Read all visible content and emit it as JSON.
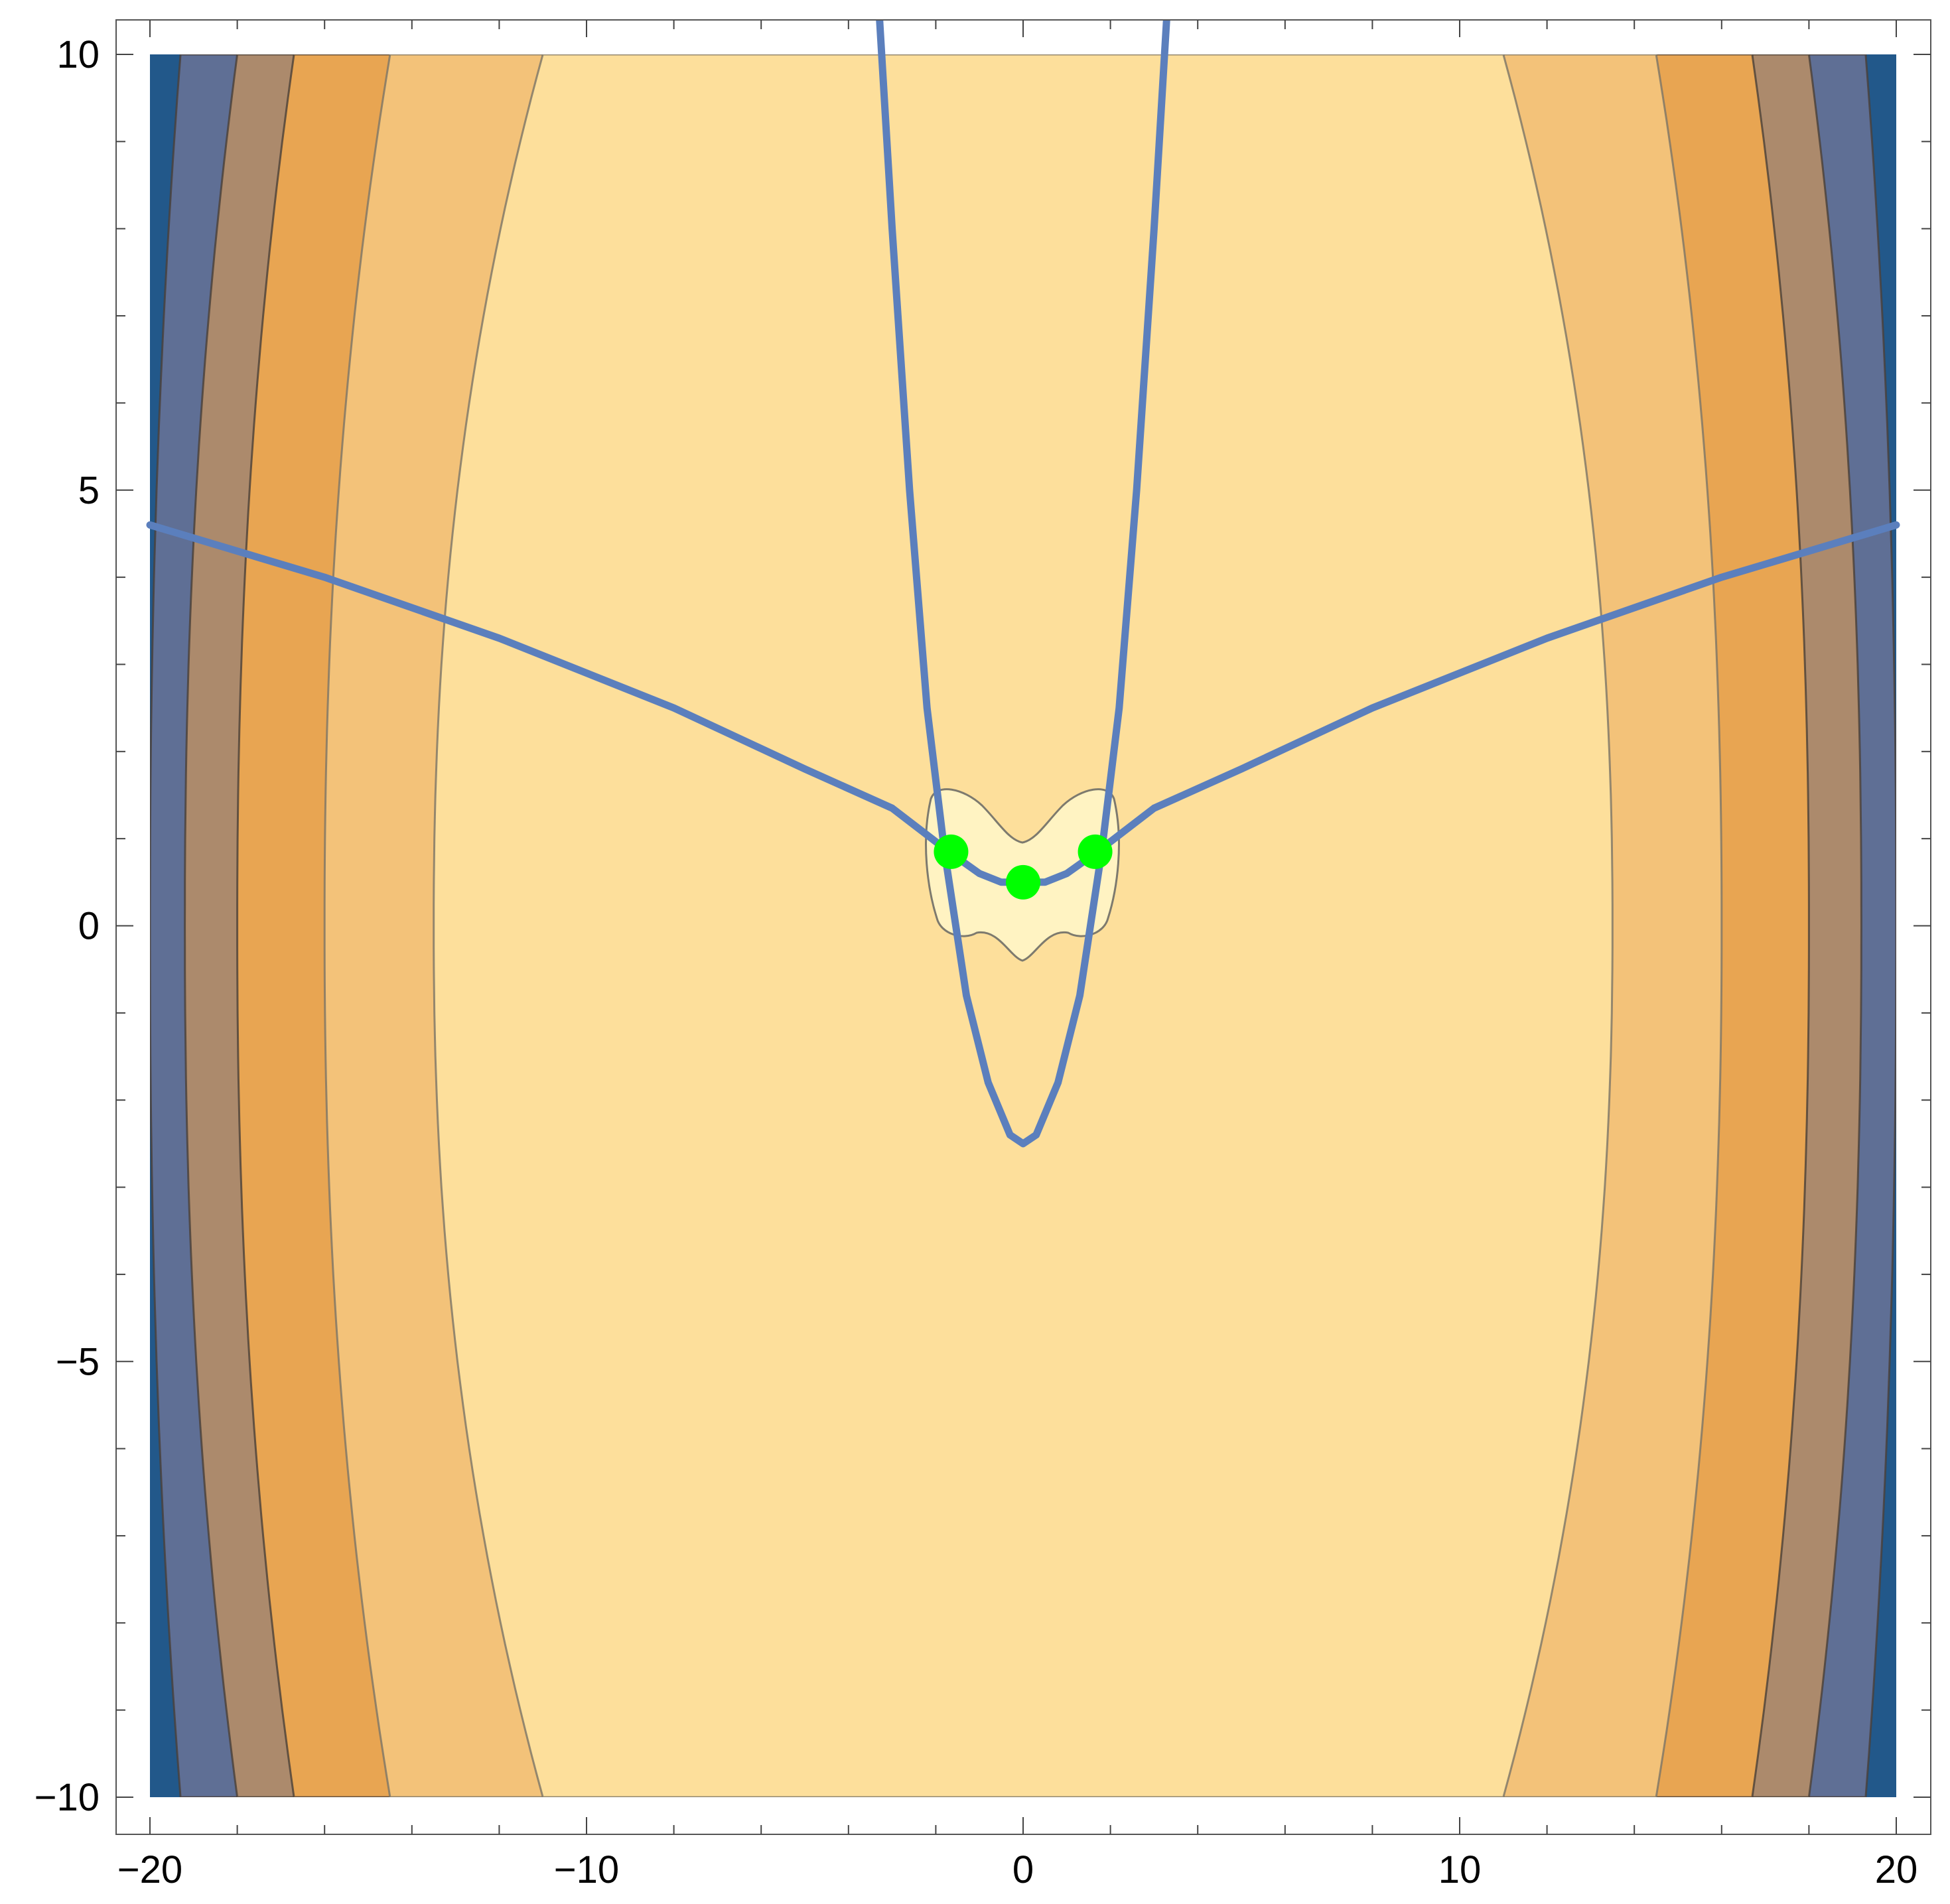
{
  "chart_data": {
    "type": "contour",
    "title": "",
    "xlabel": "",
    "ylabel": "",
    "xlim": [
      -20,
      20
    ],
    "ylim": [
      -10,
      10
    ],
    "x_major_ticks": [
      -20,
      -10,
      0,
      10,
      20
    ],
    "y_major_ticks": [
      -10,
      -5,
      0,
      5,
      10
    ],
    "x_tick_labels": [
      "−20",
      "−10",
      "0",
      "10",
      "20"
    ],
    "y_tick_labels": [
      "−10",
      "−5",
      "0",
      "5",
      "10"
    ],
    "x_minor_step": 2,
    "y_minor_step": 1,
    "contour_bands": [
      {
        "level": 1,
        "color": "#FFF3C2",
        "description": "innermost region around origin"
      },
      {
        "level": 2,
        "color": "#FDDF9B"
      },
      {
        "level": 3,
        "color": "#F3C279"
      },
      {
        "level": 4,
        "color": "#E8A552"
      },
      {
        "level": 5,
        "color": "#AC8A6C"
      },
      {
        "level": 6,
        "color": "#5F6F95"
      },
      {
        "level": 7,
        "color": "#22588A"
      }
    ],
    "contour_band_edges_x_at_y0": [
      13.5,
      16,
      18,
      19.2,
      20
    ],
    "contour_band_edges_x_at_y_minus10": [
      11,
      14.5,
      16.7,
      18,
      19.3
    ],
    "curves": [
      {
        "name": "",
        "color": "#5B7FBD",
        "points": [
          [
            -20,
            4.6
          ],
          [
            -16,
            4.0
          ],
          [
            -12,
            3.3
          ],
          [
            -8,
            2.5
          ],
          [
            -5,
            1.8
          ],
          [
            -3,
            1.35
          ],
          [
            -1.7,
            0.85
          ],
          [
            -1,
            0.6
          ],
          [
            -0.5,
            0.5
          ],
          [
            0,
            0.5
          ],
          [
            0.5,
            0.5
          ],
          [
            1,
            0.6
          ],
          [
            1.7,
            0.85
          ],
          [
            3,
            1.35
          ],
          [
            5,
            1.8
          ],
          [
            8,
            2.5
          ],
          [
            12,
            3.3
          ],
          [
            16,
            4.0
          ],
          [
            20,
            4.6
          ]
        ]
      },
      {
        "name": "",
        "color": "#5B7FBD",
        "points": [
          [
            -3.3,
            10.5
          ],
          [
            -3.0,
            8
          ],
          [
            -2.6,
            5
          ],
          [
            -2.2,
            2.5
          ],
          [
            -1.8,
            0.85
          ],
          [
            -1.3,
            -0.8
          ],
          [
            -0.8,
            -1.8
          ],
          [
            -0.3,
            -2.4
          ],
          [
            0,
            -2.5
          ],
          [
            0.3,
            -2.4
          ],
          [
            0.8,
            -1.8
          ],
          [
            1.3,
            -0.8
          ],
          [
            1.8,
            0.85
          ],
          [
            2.2,
            2.5
          ],
          [
            2.6,
            5
          ],
          [
            3.0,
            8
          ],
          [
            3.3,
            10.5
          ]
        ]
      }
    ],
    "points": {
      "color": "#00FF00",
      "values": [
        [
          -1.65,
          0.85
        ],
        [
          0,
          0.5
        ],
        [
          1.65,
          0.85
        ]
      ]
    }
  }
}
